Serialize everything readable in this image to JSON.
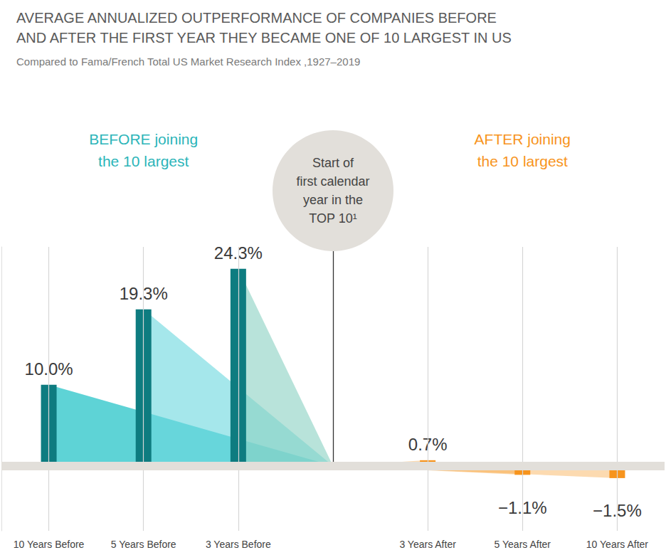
{
  "chart_data": {
    "type": "bar",
    "title": "AVERAGE ANNUALIZED OUTPERFORMANCE OF COMPANIES BEFORE\nAND AFTER THE FIRST YEAR THEY BECAME ONE OF 10 LARGEST IN US",
    "subtitle": "Compared to Fama/French Total US Market Research Index ,1927–2019",
    "categories": [
      "10 Years Before",
      "5 Years Before",
      "3 Years Before",
      null,
      "3 Years After",
      "5 Years After",
      "10 Years After"
    ],
    "values": [
      10.0,
      19.3,
      24.3,
      null,
      0.7,
      -1.1,
      -1.5
    ],
    "value_labels": [
      "10.0%",
      "19.3%",
      "24.3%",
      null,
      "0.7%",
      "−1.1%",
      "−1.5%"
    ],
    "colors": [
      "#0e7c80",
      "#0e7c80",
      "#0e7c80",
      null,
      "#f7941d",
      "#f7941d",
      "#f7941d"
    ],
    "ylim": [
      -8,
      27
    ],
    "grid": true,
    "data_labels": true,
    "tick_labels": "x",
    "annotations": [
      "BEFORE joining\nthe 10 largest",
      "Start of\nfirst calendar\nyear in the\nTOP 10¹",
      "AFTER joining\nthe 10 largest"
    ]
  }
}
